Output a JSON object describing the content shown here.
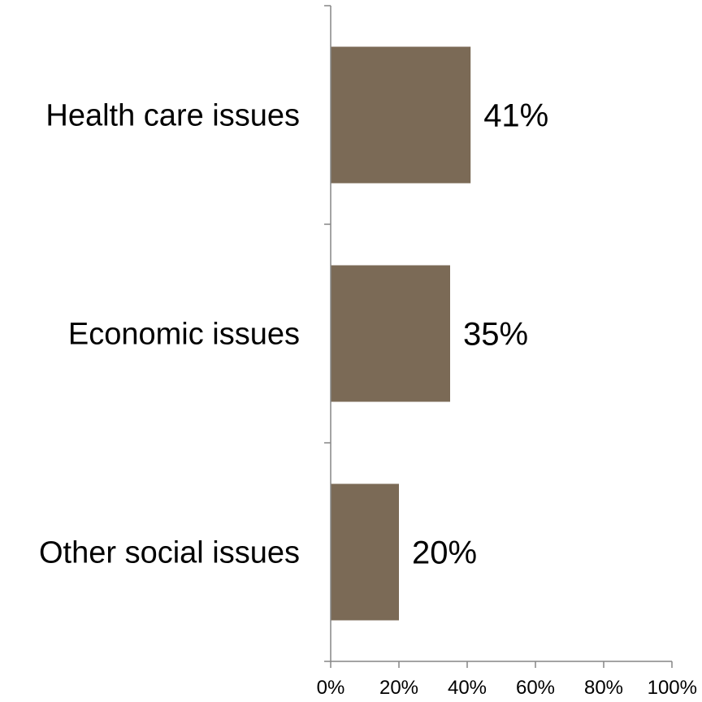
{
  "chart_data": {
    "type": "bar",
    "orientation": "horizontal",
    "categories": [
      "Health care issues",
      "Economic issues",
      "Other social issues"
    ],
    "values": [
      41,
      35,
      20
    ],
    "data_labels": [
      "41%",
      "35%",
      "20%"
    ],
    "xlim": [
      0,
      100
    ],
    "x_ticks": [
      0,
      20,
      40,
      60,
      80,
      100
    ],
    "x_tick_labels": [
      "0%",
      "20%",
      "40%",
      "60%",
      "80%",
      "100%"
    ],
    "grid": false,
    "legend": "none",
    "bar_color": "#7b6a56"
  }
}
